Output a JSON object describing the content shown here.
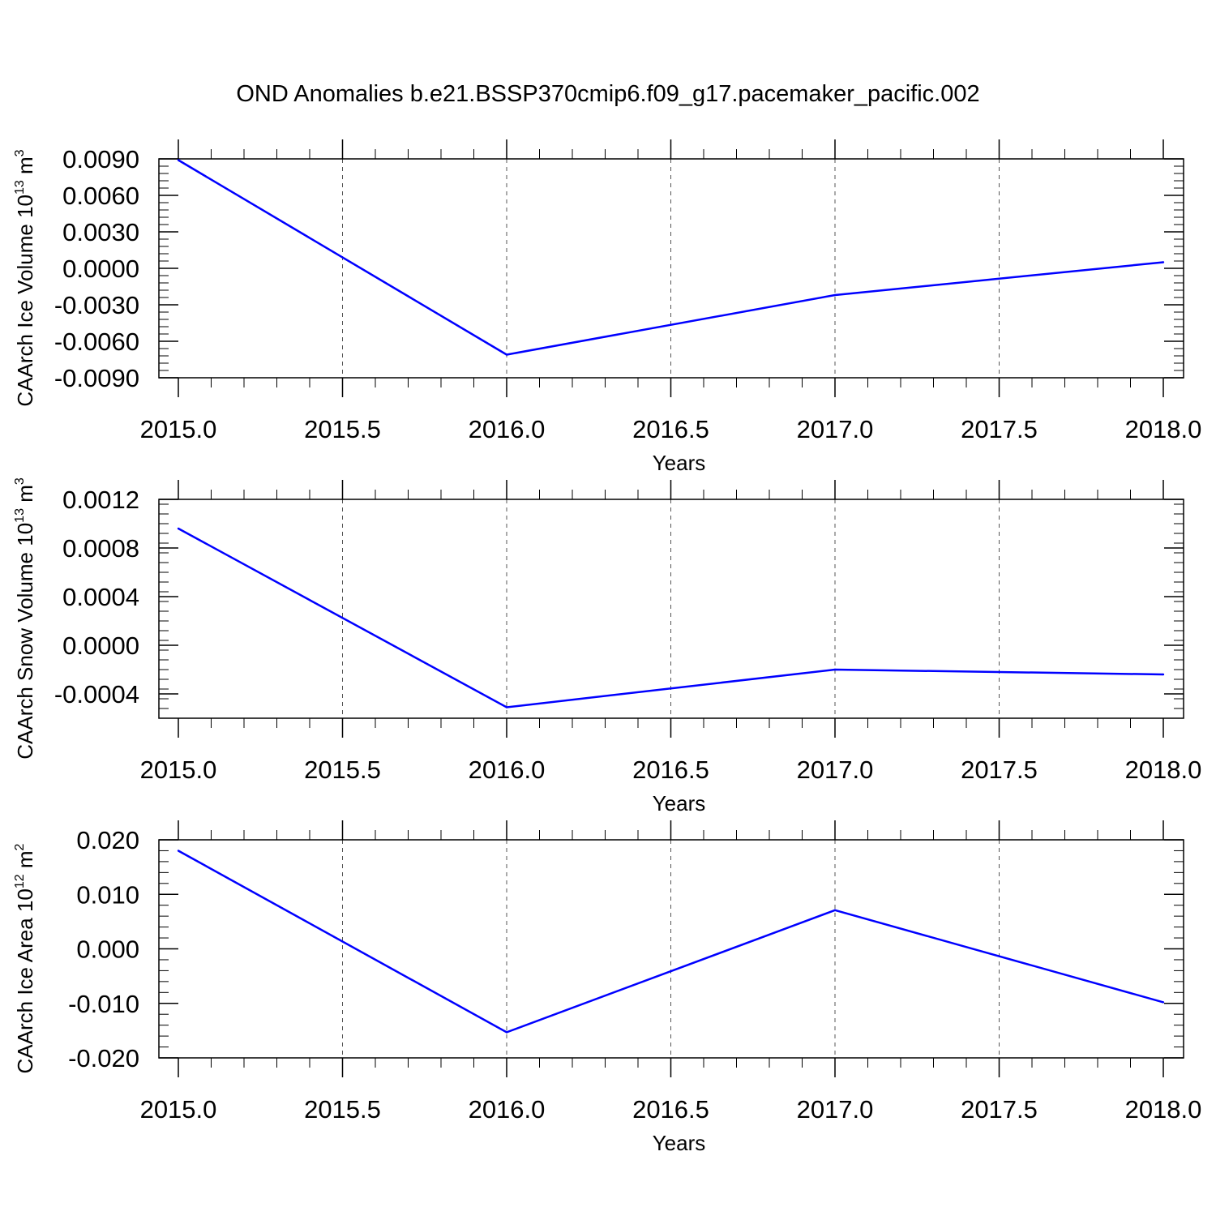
{
  "figure": {
    "title": "OND Anomalies b.e21.BSSP370cmip6.f09_g17.pacemaker_pacific.002",
    "line_color": "#0000ff"
  },
  "chart_data": [
    {
      "type": "line",
      "ylabel": {
        "main": "CAArch Ice Volume 10",
        "sup": "13",
        "unit": " m",
        "unit_sup": "3"
      },
      "xlabel": "Years",
      "x": [
        2015.0,
        2016.0,
        2017.0,
        2018.0
      ],
      "series": [
        {
          "values": [
            0.0089,
            -0.0071,
            -0.0022,
            0.0005
          ]
        }
      ],
      "xlim": [
        2015.0,
        2018.0
      ],
      "ylim": [
        -0.009,
        0.009
      ],
      "xticks": [
        2015.0,
        2015.5,
        2016.0,
        2016.5,
        2017.0,
        2017.5,
        2018.0
      ],
      "xtick_labels": [
        "2015.0",
        "2015.5",
        "2016.0",
        "2016.5",
        "2017.0",
        "2017.5",
        "2018.0"
      ],
      "yticks": [
        0.009,
        0.006,
        0.003,
        0.0,
        -0.003,
        -0.006,
        -0.009
      ],
      "ytick_labels": [
        "0.0090",
        "0.0060",
        "0.0030",
        "0.0000",
        "-0.0030",
        "-0.0060",
        "-0.0090"
      ],
      "grid": "vertical dashed"
    },
    {
      "type": "line",
      "ylabel": {
        "main": "CAArch Snow Volume 10",
        "sup": "13",
        "unit": " m",
        "unit_sup": "3"
      },
      "xlabel": "Years",
      "x": [
        2015.0,
        2016.0,
        2017.0,
        2018.0
      ],
      "series": [
        {
          "values": [
            0.00096,
            -0.00051,
            -0.0002,
            -0.00024
          ]
        }
      ],
      "xlim": [
        2015.0,
        2018.0
      ],
      "ylim": [
        -0.0006,
        0.0012
      ],
      "xticks": [
        2015.0,
        2015.5,
        2016.0,
        2016.5,
        2017.0,
        2017.5,
        2018.0
      ],
      "xtick_labels": [
        "2015.0",
        "2015.5",
        "2016.0",
        "2016.5",
        "2017.0",
        "2017.5",
        "2018.0"
      ],
      "yticks": [
        0.0012,
        0.0008,
        0.0004,
        0.0,
        -0.0004
      ],
      "ytick_labels": [
        "0.0012",
        "0.0008",
        "0.0004",
        "0.0000",
        "-0.0004"
      ],
      "grid": "vertical dashed"
    },
    {
      "type": "line",
      "ylabel": {
        "main": "CAArch Ice Area 10",
        "sup": "12",
        "unit": " m",
        "unit_sup": "2"
      },
      "xlabel": "Years",
      "x": [
        2015.0,
        2016.0,
        2017.0,
        2018.0
      ],
      "series": [
        {
          "values": [
            0.018,
            -0.0153,
            0.0071,
            -0.0098
          ]
        }
      ],
      "xlim": [
        2015.0,
        2018.0
      ],
      "ylim": [
        -0.02,
        0.02
      ],
      "xticks": [
        2015.0,
        2015.5,
        2016.0,
        2016.5,
        2017.0,
        2017.5,
        2018.0
      ],
      "xtick_labels": [
        "2015.0",
        "2015.5",
        "2016.0",
        "2016.5",
        "2017.0",
        "2017.5",
        "2018.0"
      ],
      "yticks": [
        0.02,
        0.01,
        0.0,
        -0.01,
        -0.02
      ],
      "ytick_labels": [
        "0.020",
        "0.010",
        "0.000",
        "-0.010",
        "-0.020"
      ],
      "grid": "vertical dashed"
    }
  ]
}
